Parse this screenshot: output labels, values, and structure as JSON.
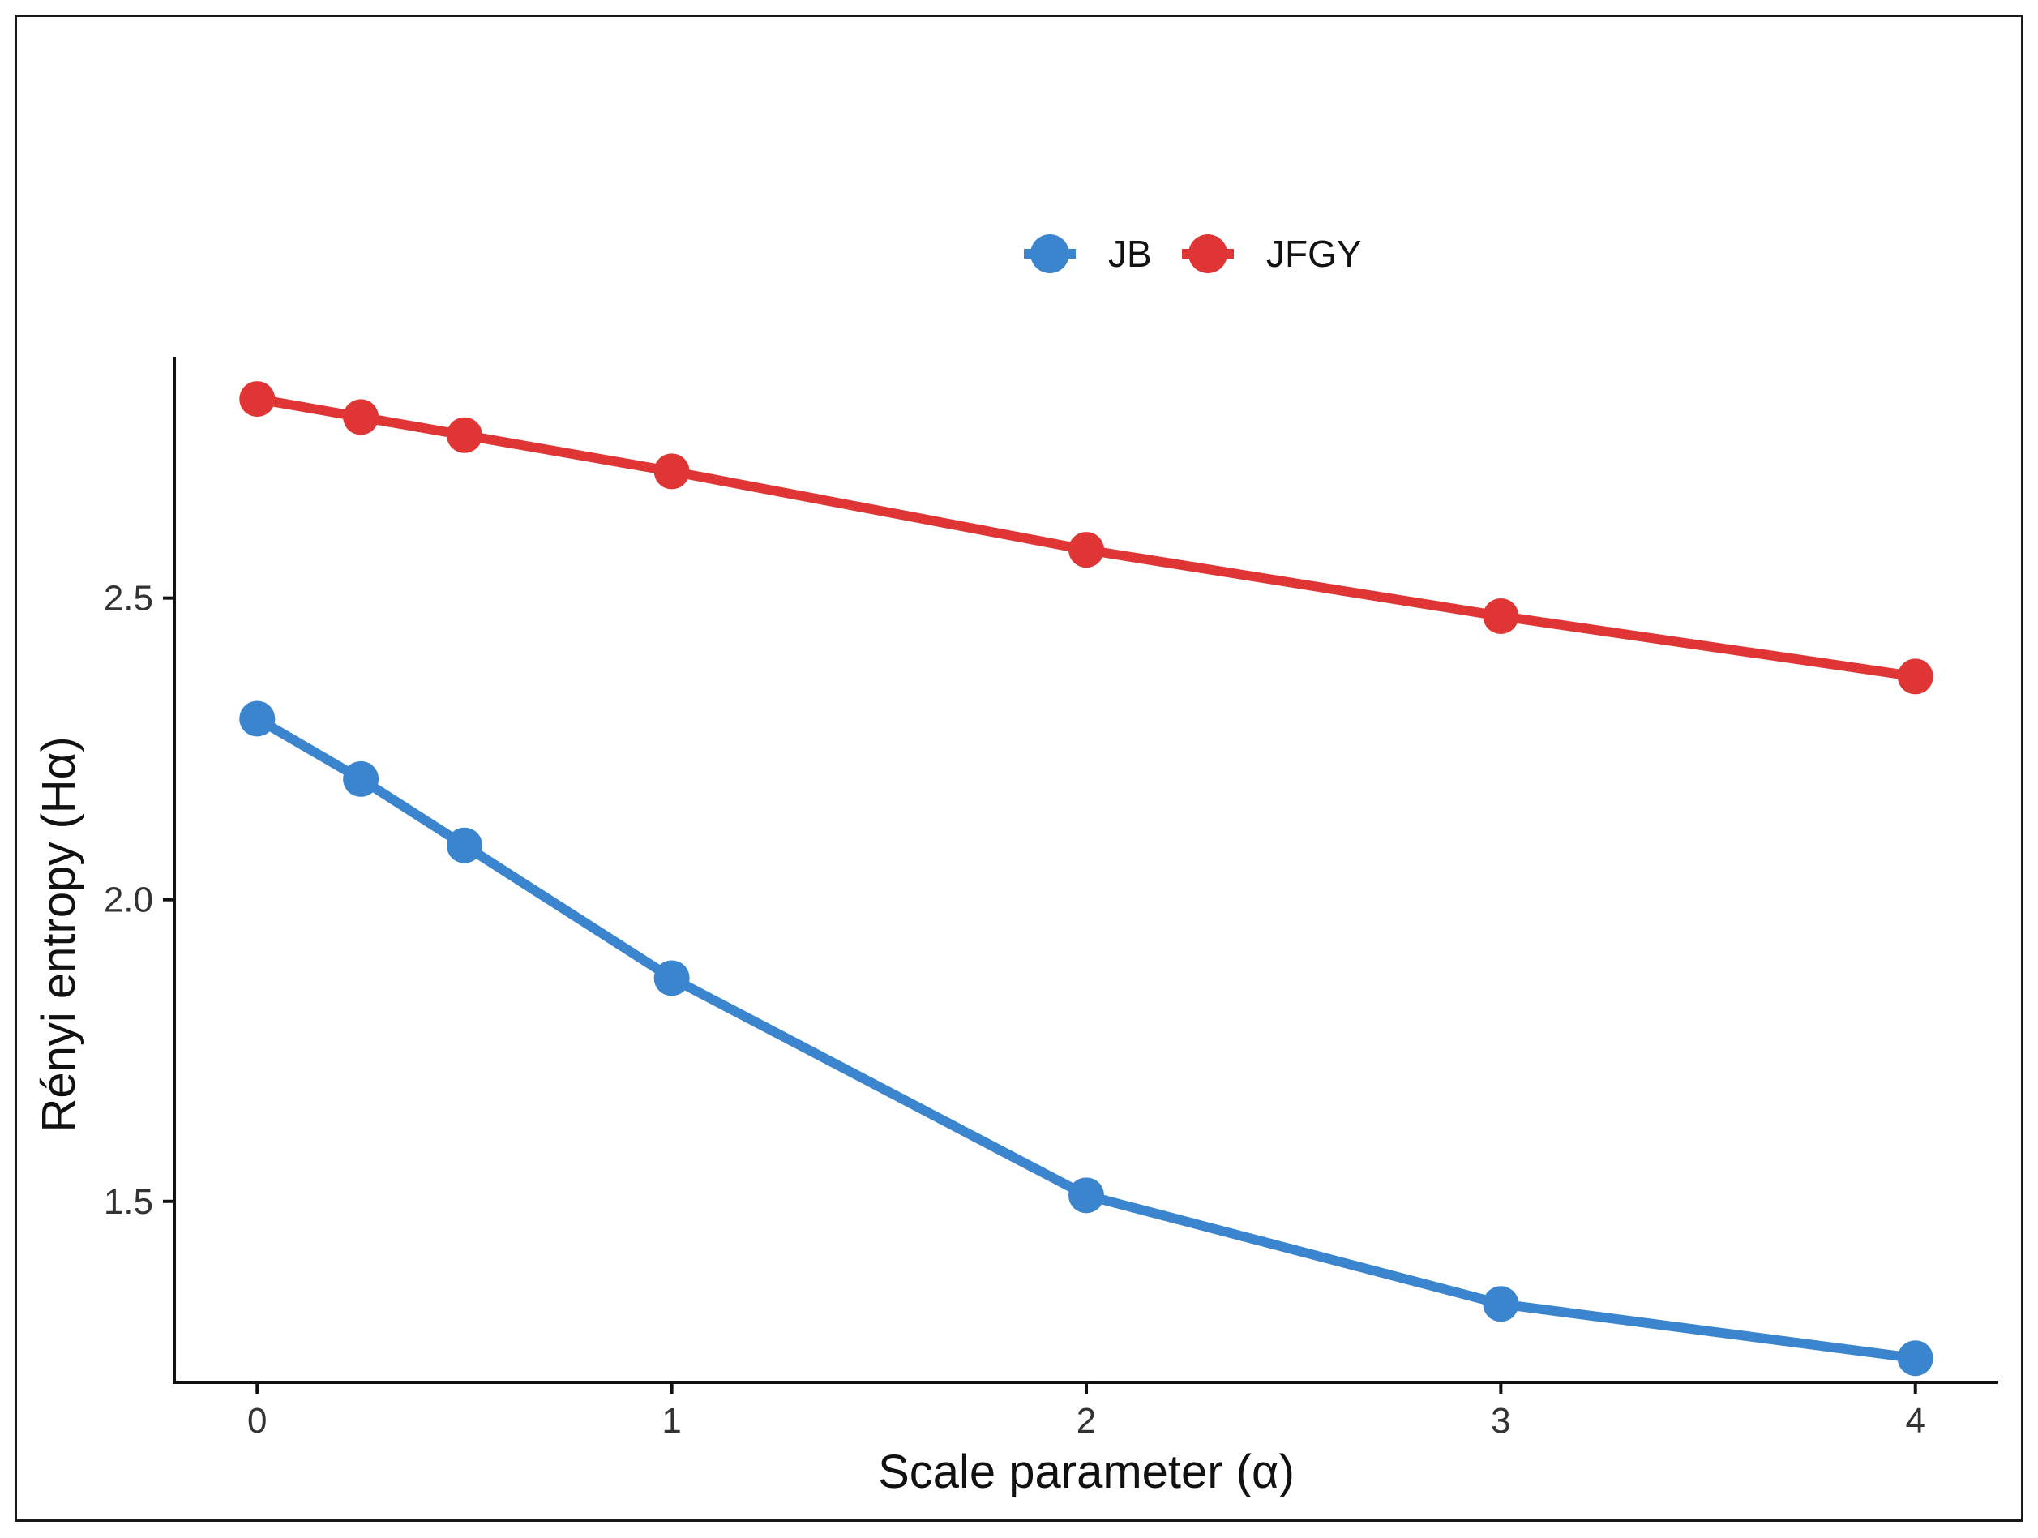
{
  "chart_data": {
    "type": "line",
    "xlabel": "Scale parameter (α)",
    "ylabel": "Rényi entropy (Hα)",
    "xlim": [
      -0.2,
      4.2
    ],
    "ylim": [
      1.2,
      2.9
    ],
    "xticks": [
      0,
      1,
      2,
      3,
      4
    ],
    "xtick_labels": [
      "0",
      "1",
      "2",
      "3",
      "4"
    ],
    "yticks": [
      1.5,
      2.0,
      2.5
    ],
    "ytick_labels": [
      "1.5",
      "2.0",
      "2.5"
    ],
    "grid": false,
    "legend_position": "top",
    "x": [
      0,
      0.25,
      0.5,
      1,
      2,
      3,
      4
    ],
    "series": [
      {
        "name": "JB",
        "color": "#3a85cd",
        "values": [
          2.3,
          2.2,
          2.09,
          1.87,
          1.51,
          1.33,
          1.24
        ]
      },
      {
        "name": "JFGY",
        "color": "#e03535",
        "values": [
          2.83,
          2.8,
          2.77,
          2.71,
          2.58,
          2.47,
          2.37
        ]
      }
    ]
  }
}
